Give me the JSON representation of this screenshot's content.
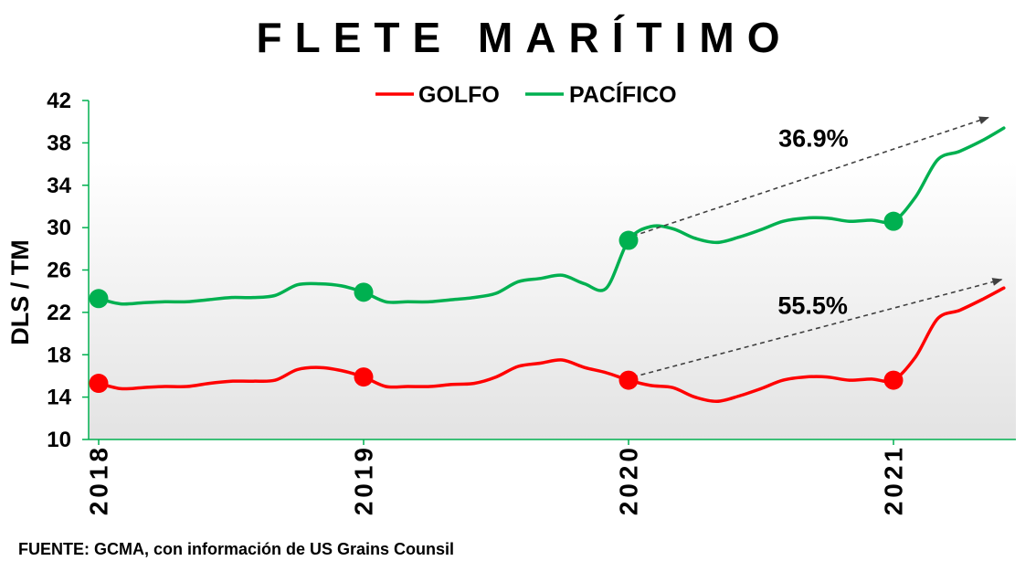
{
  "chart_data": {
    "type": "line",
    "title": "FLETE MARÍTIMO",
    "xlabel": "",
    "ylabel": "DLS / TM",
    "ylim": [
      10,
      42
    ],
    "yticks": [
      42,
      38,
      34,
      30,
      26,
      22,
      18,
      14,
      10
    ],
    "x_ticks": [
      {
        "label": "2018",
        "index": 0
      },
      {
        "label": "2019",
        "index": 12
      },
      {
        "label": "2020",
        "index": 24
      },
      {
        "label": "2021",
        "index": 36
      }
    ],
    "legend": "top-center",
    "grid": false,
    "series": [
      {
        "name": "GOLFO",
        "color": "#ff0000",
        "values": [
          15.3,
          14.8,
          14.9,
          15.0,
          15.0,
          15.3,
          15.5,
          15.5,
          15.6,
          16.6,
          16.8,
          16.5,
          15.9,
          15.0,
          15.0,
          15.0,
          15.2,
          15.3,
          15.9,
          16.9,
          17.2,
          17.5,
          16.8,
          16.3,
          15.6,
          15.1,
          14.9,
          14.0,
          13.6,
          14.1,
          14.8,
          15.6,
          15.9,
          15.9,
          15.6,
          15.7,
          15.6,
          17.8,
          21.4,
          22.2,
          23.2,
          24.3
        ],
        "marker_indices": [
          0,
          12,
          24,
          36
        ]
      },
      {
        "name": "PACÍFICO",
        "color": "#00b050",
        "values": [
          23.3,
          22.8,
          22.9,
          23.0,
          23.0,
          23.2,
          23.4,
          23.4,
          23.6,
          24.6,
          24.7,
          24.5,
          23.9,
          23.0,
          23.0,
          23.0,
          23.2,
          23.4,
          23.8,
          24.9,
          25.2,
          25.5,
          24.7,
          24.3,
          28.8,
          30.1,
          29.9,
          29.0,
          28.6,
          29.1,
          29.8,
          30.6,
          30.9,
          30.9,
          30.6,
          30.7,
          30.6,
          32.9,
          36.4,
          37.2,
          38.2,
          39.4
        ],
        "marker_indices": [
          0,
          12,
          24,
          36
        ]
      }
    ],
    "annotations": [
      {
        "text": "36.9%",
        "series": "PACÍFICO",
        "arrow_from": [
          24.2,
          29.2
        ],
        "arrow_to": [
          40.3,
          40.4
        ]
      },
      {
        "text": "55.5%",
        "series": "GOLFO",
        "arrow_from": [
          24.2,
          15.9
        ],
        "arrow_to": [
          40.9,
          25.1
        ]
      }
    ]
  },
  "source": "FUENTE: GCMA, con información de US Grains Counsil",
  "colors": {
    "axis": "#00b050",
    "arrow": "#404040",
    "plot_bg_top": "#ffffff",
    "plot_bg_bottom": "#e3e3e3",
    "text": "#000000"
  }
}
